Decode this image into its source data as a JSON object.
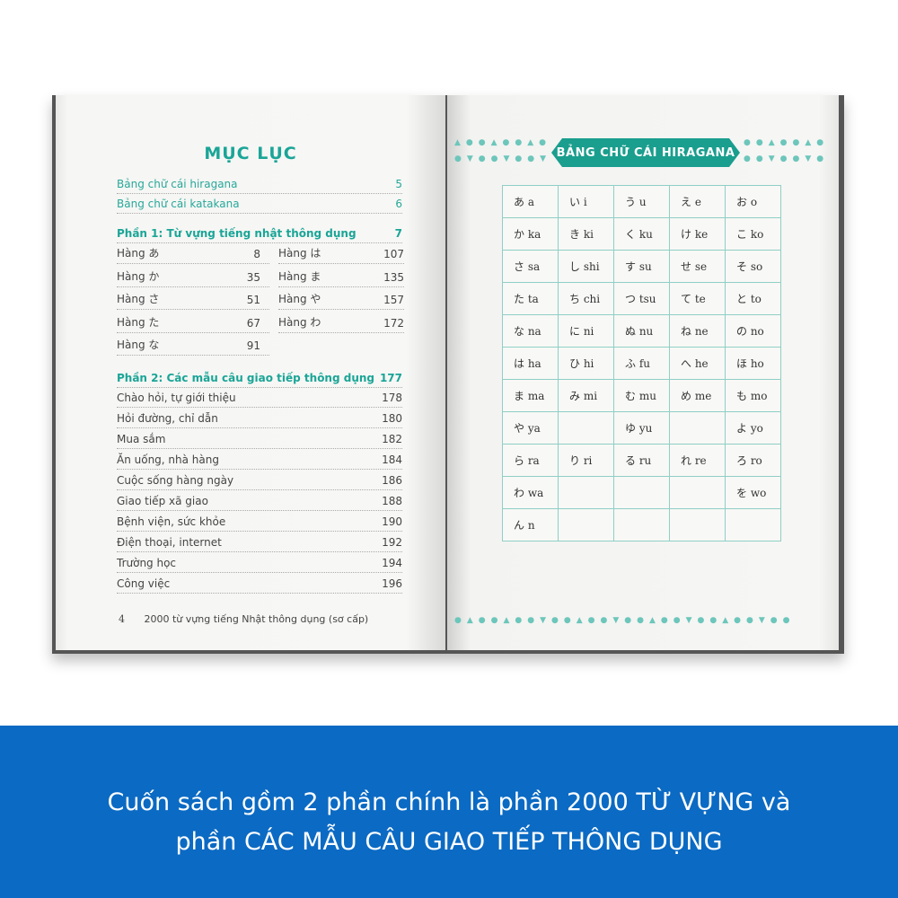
{
  "left_page": {
    "title": "MỤC LỤC",
    "intro": [
      {
        "label": "Bảng chữ cái hiragana",
        "page": "5"
      },
      {
        "label": "Bảng chữ cái katakana",
        "page": "6"
      }
    ],
    "part1": {
      "label": "Phần 1: Từ vựng tiếng nhật thông dụng",
      "page": "7"
    },
    "part1_left": [
      {
        "label": "Hàng あ",
        "page": "8"
      },
      {
        "label": "Hàng か",
        "page": "35"
      },
      {
        "label": "Hàng さ",
        "page": "51"
      },
      {
        "label": "Hàng た",
        "page": "67"
      },
      {
        "label": "Hàng な",
        "page": "91"
      }
    ],
    "part1_right": [
      {
        "label": "Hàng は",
        "page": "107"
      },
      {
        "label": "Hàng ま",
        "page": "135"
      },
      {
        "label": "Hàng や",
        "page": "157"
      },
      {
        "label": "Hàng わ",
        "page": "172"
      }
    ],
    "part2": {
      "label": "Phần 2: Các mẫu câu giao tiếp thông dụng",
      "page": "177"
    },
    "part2_items": [
      {
        "label": "Chào hỏi, tự giới thiệu",
        "page": "178"
      },
      {
        "label": "Hỏi đường, chỉ dẫn",
        "page": "180"
      },
      {
        "label": "Mua sắm",
        "page": "182"
      },
      {
        "label": "Ăn uống, nhà hàng",
        "page": "184"
      },
      {
        "label": "Cuộc sống hàng ngày",
        "page": "186"
      },
      {
        "label": "Giao tiếp xã giao",
        "page": "188"
      },
      {
        "label": "Bệnh viện, sức khỏe",
        "page": "190"
      },
      {
        "label": "Điện thoại, internet",
        "page": "192"
      },
      {
        "label": "Trường học",
        "page": "194"
      },
      {
        "label": "Công việc",
        "page": "196"
      }
    ],
    "footer_page": "4",
    "footer_text": "2000 từ vựng tiếng Nhật thông dụng (sơ cấp)"
  },
  "right_page": {
    "title": "BẢNG CHỮ CÁI HIRAGANA",
    "table": [
      [
        "あ a",
        "い i",
        "う u",
        "え e",
        "お o"
      ],
      [
        "か ka",
        "き ki",
        "く ku",
        "け ke",
        "こ ko"
      ],
      [
        "さ sa",
        "し shi",
        "す su",
        "せ se",
        "そ so"
      ],
      [
        "た ta",
        "ち chi",
        "つ tsu",
        "て te",
        "と to"
      ],
      [
        "な na",
        "に ni",
        "ぬ nu",
        "ね ne",
        "の no"
      ],
      [
        "は ha",
        "ひ hi",
        "ふ fu",
        "へ he",
        "ほ ho"
      ],
      [
        "ま ma",
        "み mi",
        "む mu",
        "め me",
        "も mo"
      ],
      [
        "や ya",
        "",
        "ゆ yu",
        "",
        "よ yo"
      ],
      [
        "ら ra",
        "り ri",
        "る ru",
        "れ re",
        "ろ ro"
      ],
      [
        "わ wa",
        "",
        "",
        "",
        "を wo"
      ],
      [
        "ん n",
        "",
        "",
        "",
        ""
      ]
    ]
  },
  "caption": {
    "line1": "Cuốn sách gồm 2 phần chính là phần 2000 TỪ VỰNG và",
    "line2": "phần CÁC MẪU CÂU GIAO TIẾP THÔNG DỤNG"
  },
  "colors": {
    "teal": "#1a9e8e",
    "caption_bg": "#0b6ac3"
  }
}
